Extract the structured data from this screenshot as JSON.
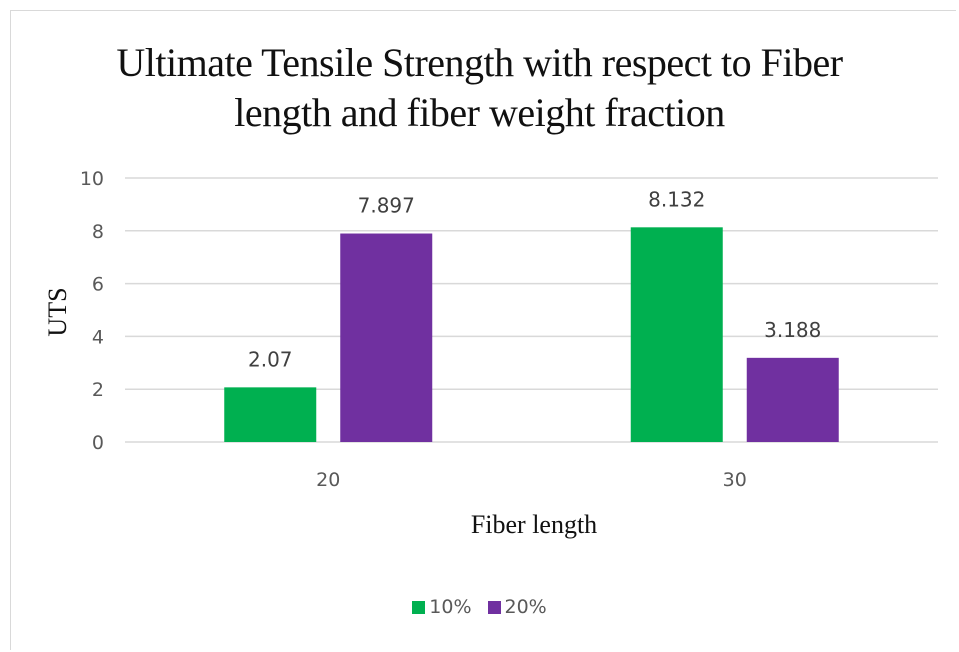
{
  "chart_data": {
    "type": "bar",
    "title_lines": [
      "Ultimate Tensile Strength with respect to Fiber",
      "length and fiber weight fraction"
    ],
    "xlabel": "Fiber length",
    "ylabel": "UTS",
    "categories": [
      "20",
      "30"
    ],
    "series": [
      {
        "name": "10%",
        "color": "#00b050",
        "values": [
          2.07,
          8.132
        ],
        "labels": [
          "2.07",
          "8.132"
        ]
      },
      {
        "name": "20%",
        "color": "#7030a0",
        "values": [
          7.897,
          3.188
        ],
        "labels": [
          "7.897",
          "3.188"
        ]
      }
    ],
    "ylim": [
      0,
      10
    ],
    "yticks": [
      0,
      2,
      4,
      6,
      8,
      10
    ],
    "grid": true,
    "legend_position": "bottom"
  }
}
